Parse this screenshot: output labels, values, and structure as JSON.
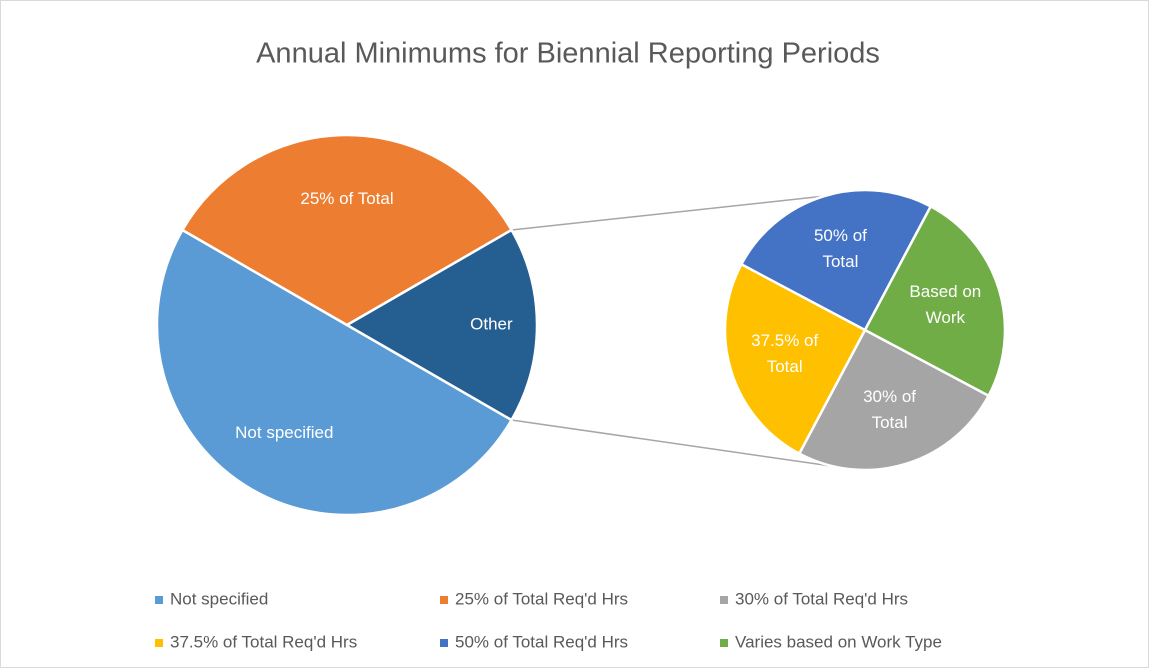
{
  "chart_data": {
    "type": "pie_of_pie",
    "title": "Annual Minimums for Biennial Reporting Periods",
    "categories": [
      "Not specified",
      "25% of Total Req'd Hrs",
      "30% of Total Req'd Hrs",
      "37.5% of Total Req'd Hrs",
      "50% of Total Req'd Hrs",
      "Varies based on Work Type"
    ],
    "values": [
      12,
      8,
      1,
      1,
      1,
      1
    ],
    "colors": [
      "#5b9bd5",
      "#ed7d31",
      "#a5a5a5",
      "#ffc000",
      "#4472c4",
      "#70ad47"
    ],
    "slice_labels": [
      [
        "Not specified"
      ],
      [
        "25% of Total"
      ],
      [
        "30% of",
        "Total"
      ],
      [
        "37.5% of",
        "Total"
      ],
      [
        "50% of",
        "Total"
      ],
      [
        "Based on",
        "Work"
      ]
    ],
    "other_label": "Other",
    "other_color": "#255e91",
    "legend": "bottom"
  }
}
